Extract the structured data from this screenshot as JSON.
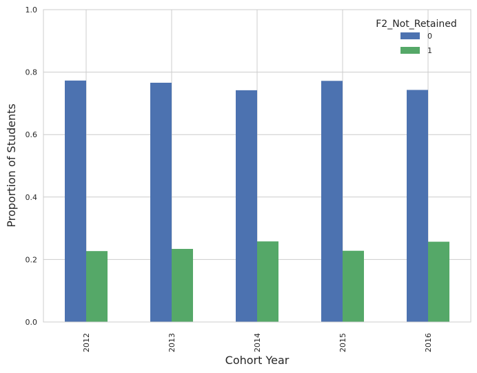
{
  "chart_data": {
    "type": "bar",
    "xlabel": "Cohort Year",
    "ylabel": "Proportion of Students",
    "ylim": [
      0,
      1.0
    ],
    "yticks": [
      "0.0",
      "0.2",
      "0.4",
      "0.6",
      "0.8",
      "1.0"
    ],
    "categories": [
      "2012",
      "2013",
      "2014",
      "2015",
      "2016"
    ],
    "legend": {
      "title": "F2_Not_Retained",
      "position": "top-right"
    },
    "grid": true,
    "series": [
      {
        "name": "0",
        "color": "#4c72b0",
        "values": [
          0.773,
          0.766,
          0.742,
          0.772,
          0.743
        ]
      },
      {
        "name": "1",
        "color": "#55a868",
        "values": [
          0.227,
          0.234,
          0.258,
          0.228,
          0.257
        ]
      }
    ]
  }
}
